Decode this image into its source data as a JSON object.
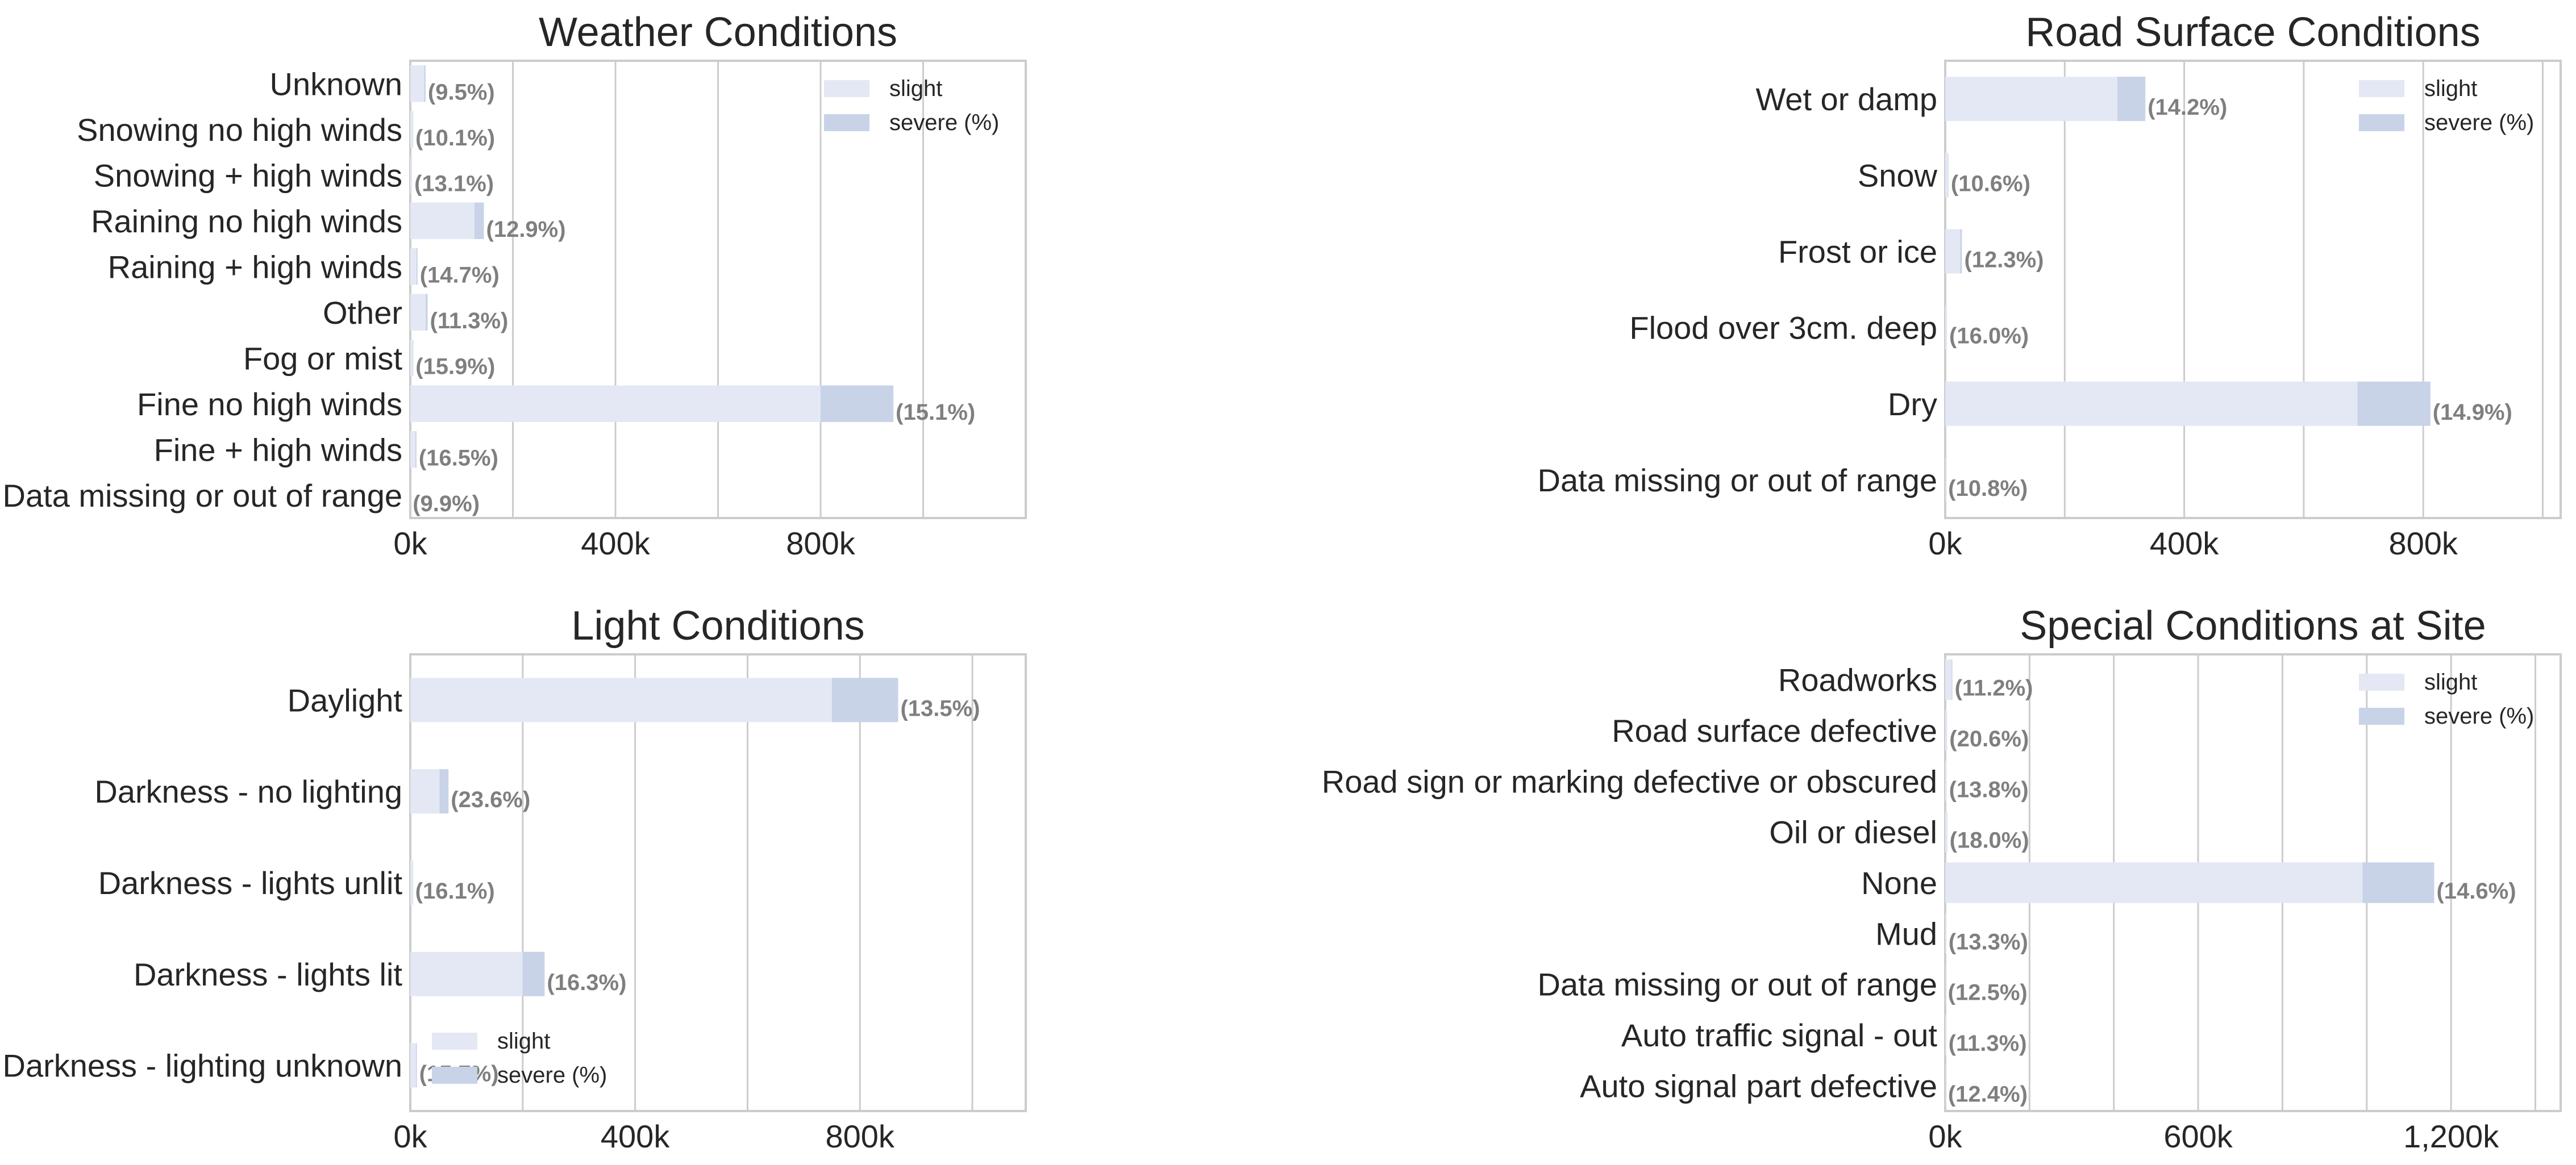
{
  "colors": {
    "slight": "#e3e8f4",
    "severe": "#c8d3e8",
    "grid": "#cccccc",
    "frame": "#cccccc",
    "text": "#262626",
    "pct_text": "#7f7f7f"
  },
  "chart_data": [
    {
      "id": "weather",
      "type": "bar",
      "orientation": "horizontal",
      "stacked": true,
      "title": "Weather Conditions",
      "categories": [
        "Unknown",
        "Snowing no high winds",
        "Snowing + high winds",
        "Raining no high winds",
        "Raining + high winds",
        "Other",
        "Fog or mist",
        "Fine no high winds",
        "Fine + high winds",
        "Data missing or out of range"
      ],
      "series": [
        {
          "name": "slight",
          "values": [
            27000,
            5000,
            3000,
            125000,
            12000,
            30000,
            5000,
            800000,
            10000,
            200
          ]
        },
        {
          "name": "severe (%)",
          "values": [
            2800,
            600,
            400,
            18500,
            2100,
            3800,
            800,
            142000,
            2000,
            30
          ]
        }
      ],
      "severe_pct_labels": [
        "(9.5%)",
        "(10.1%)",
        "(13.1%)",
        "(12.9%)",
        "(14.7%)",
        "(11.3%)",
        "(15.9%)",
        "(15.1%)",
        "(16.5%)",
        "(9.9%)"
      ],
      "xlim": [
        0,
        1200000
      ],
      "xticks": [
        0,
        400000,
        800000
      ],
      "xtick_labels": [
        "0k",
        "400k",
        "800k"
      ],
      "gridlines": [
        0,
        200000,
        400000,
        600000,
        800000,
        1000000
      ],
      "grid": true,
      "legend": "top-right"
    },
    {
      "id": "road",
      "type": "bar",
      "orientation": "horizontal",
      "stacked": true,
      "title": "Road Surface Conditions",
      "categories": [
        "Wet or damp",
        "Snow",
        "Frost or ice",
        "Flood over 3cm. deep",
        "Dry",
        "Data missing or out of range"
      ],
      "series": [
        {
          "name": "slight",
          "values": [
            288000,
            5000,
            25000,
            2500,
            690000,
            1000
          ]
        },
        {
          "name": "severe (%)",
          "values": [
            47000,
            600,
            3000,
            400,
            122000,
            100
          ]
        }
      ],
      "severe_pct_labels": [
        "(14.2%)",
        "(10.6%)",
        "(12.3%)",
        "(16.0%)",
        "(14.9%)",
        "(10.8%)"
      ],
      "xlim": [
        0,
        1030000
      ],
      "xticks": [
        0,
        400000,
        800000
      ],
      "xtick_labels": [
        "0k",
        "400k",
        "800k"
      ],
      "gridlines": [
        0,
        200000,
        400000,
        600000,
        800000,
        1000000
      ],
      "grid": true,
      "legend": "top-right"
    },
    {
      "id": "light",
      "type": "bar",
      "orientation": "horizontal",
      "stacked": true,
      "title": "Light Conditions",
      "categories": [
        "Daylight",
        "Darkness - no lighting",
        "Darkness - lights unlit",
        "Darkness - lights lit",
        "Darkness - lighting unknown"
      ],
      "series": [
        {
          "name": "slight",
          "values": [
            750000,
            52000,
            4000,
            200000,
            10000
          ]
        },
        {
          "name": "severe (%)",
          "values": [
            118000,
            16000,
            700,
            39000,
            1700
          ]
        }
      ],
      "severe_pct_labels": [
        "(13.5%)",
        "(23.6%)",
        "(16.1%)",
        "(16.3%)",
        "(15.7%)"
      ],
      "xlim": [
        0,
        1095000
      ],
      "xticks": [
        0,
        400000,
        800000
      ],
      "xtick_labels": [
        "0k",
        "400k",
        "800k"
      ],
      "gridlines": [
        0,
        200000,
        400000,
        600000,
        800000,
        1000000
      ],
      "grid": true,
      "legend": "bottom-left"
    },
    {
      "id": "special",
      "type": "bar",
      "orientation": "horizontal",
      "stacked": true,
      "title": "Special Conditions at Site",
      "categories": [
        "Roadworks",
        "Road surface defective",
        "Road sign or marking defective or obscured",
        "Oil or diesel",
        "None",
        "Mud",
        "Data missing or out of range",
        "Auto traffic signal - out",
        "Auto signal part defective"
      ],
      "series": [
        {
          "name": "slight",
          "values": [
            15000,
            3500,
            3000,
            4000,
            990000,
            2000,
            800,
            2000,
            1000
          ]
        },
        {
          "name": "severe (%)",
          "values": [
            2000,
            900,
            500,
            900,
            170000,
            300,
            100,
            250,
            150
          ]
        }
      ],
      "severe_pct_labels": [
        "(11.2%)",
        "(20.6%)",
        "(13.8%)",
        "(18.0%)",
        "(14.6%)",
        "(13.3%)",
        "(12.5%)",
        "(11.3%)",
        "(12.4%)"
      ],
      "xlim": [
        0,
        1460000
      ],
      "xticks": [
        0,
        600000,
        1200000
      ],
      "xtick_labels": [
        "0k",
        "600k",
        "1,200k"
      ],
      "gridlines": [
        0,
        200000,
        400000,
        600000,
        800000,
        1000000,
        1200000,
        1400000
      ],
      "grid": true,
      "legend": "top-right"
    }
  ]
}
